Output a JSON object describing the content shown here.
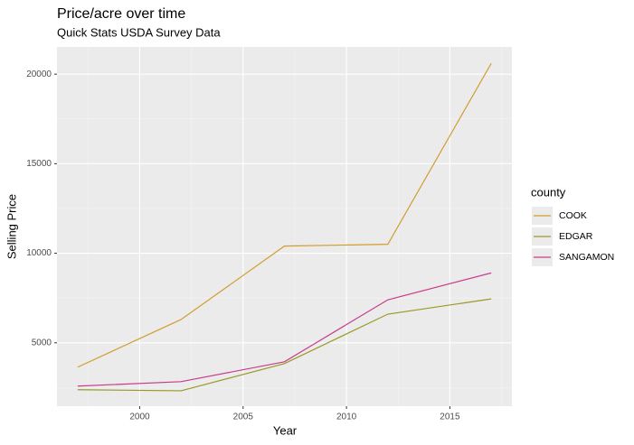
{
  "chart_data": {
    "type": "line",
    "title": "Price/acre over time",
    "subtitle": "Quick Stats USDA Survey Data",
    "x_label": "Year",
    "y_label": "Selling Price",
    "legend_title": "county",
    "x": [
      1997,
      2002,
      2007,
      2012,
      2017
    ],
    "series": [
      {
        "name": "COOK",
        "color": "#d39c2f",
        "values": [
          3640,
          6300,
          10400,
          10500,
          20600
        ]
      },
      {
        "name": "EDGAR",
        "color": "#999926",
        "values": [
          2380,
          2320,
          3840,
          6600,
          7450
        ]
      },
      {
        "name": "SANGAMON",
        "color": "#c83c8c",
        "values": [
          2580,
          2830,
          3940,
          7400,
          8900
        ]
      }
    ],
    "xlim": [
      1996,
      2018
    ],
    "xticks": [
      2000,
      2005,
      2010,
      2015
    ],
    "ylim": [
      1460,
      21520
    ],
    "yticks": [
      5000,
      10000,
      15000,
      20000
    ],
    "grid": true,
    "legend": "right"
  }
}
